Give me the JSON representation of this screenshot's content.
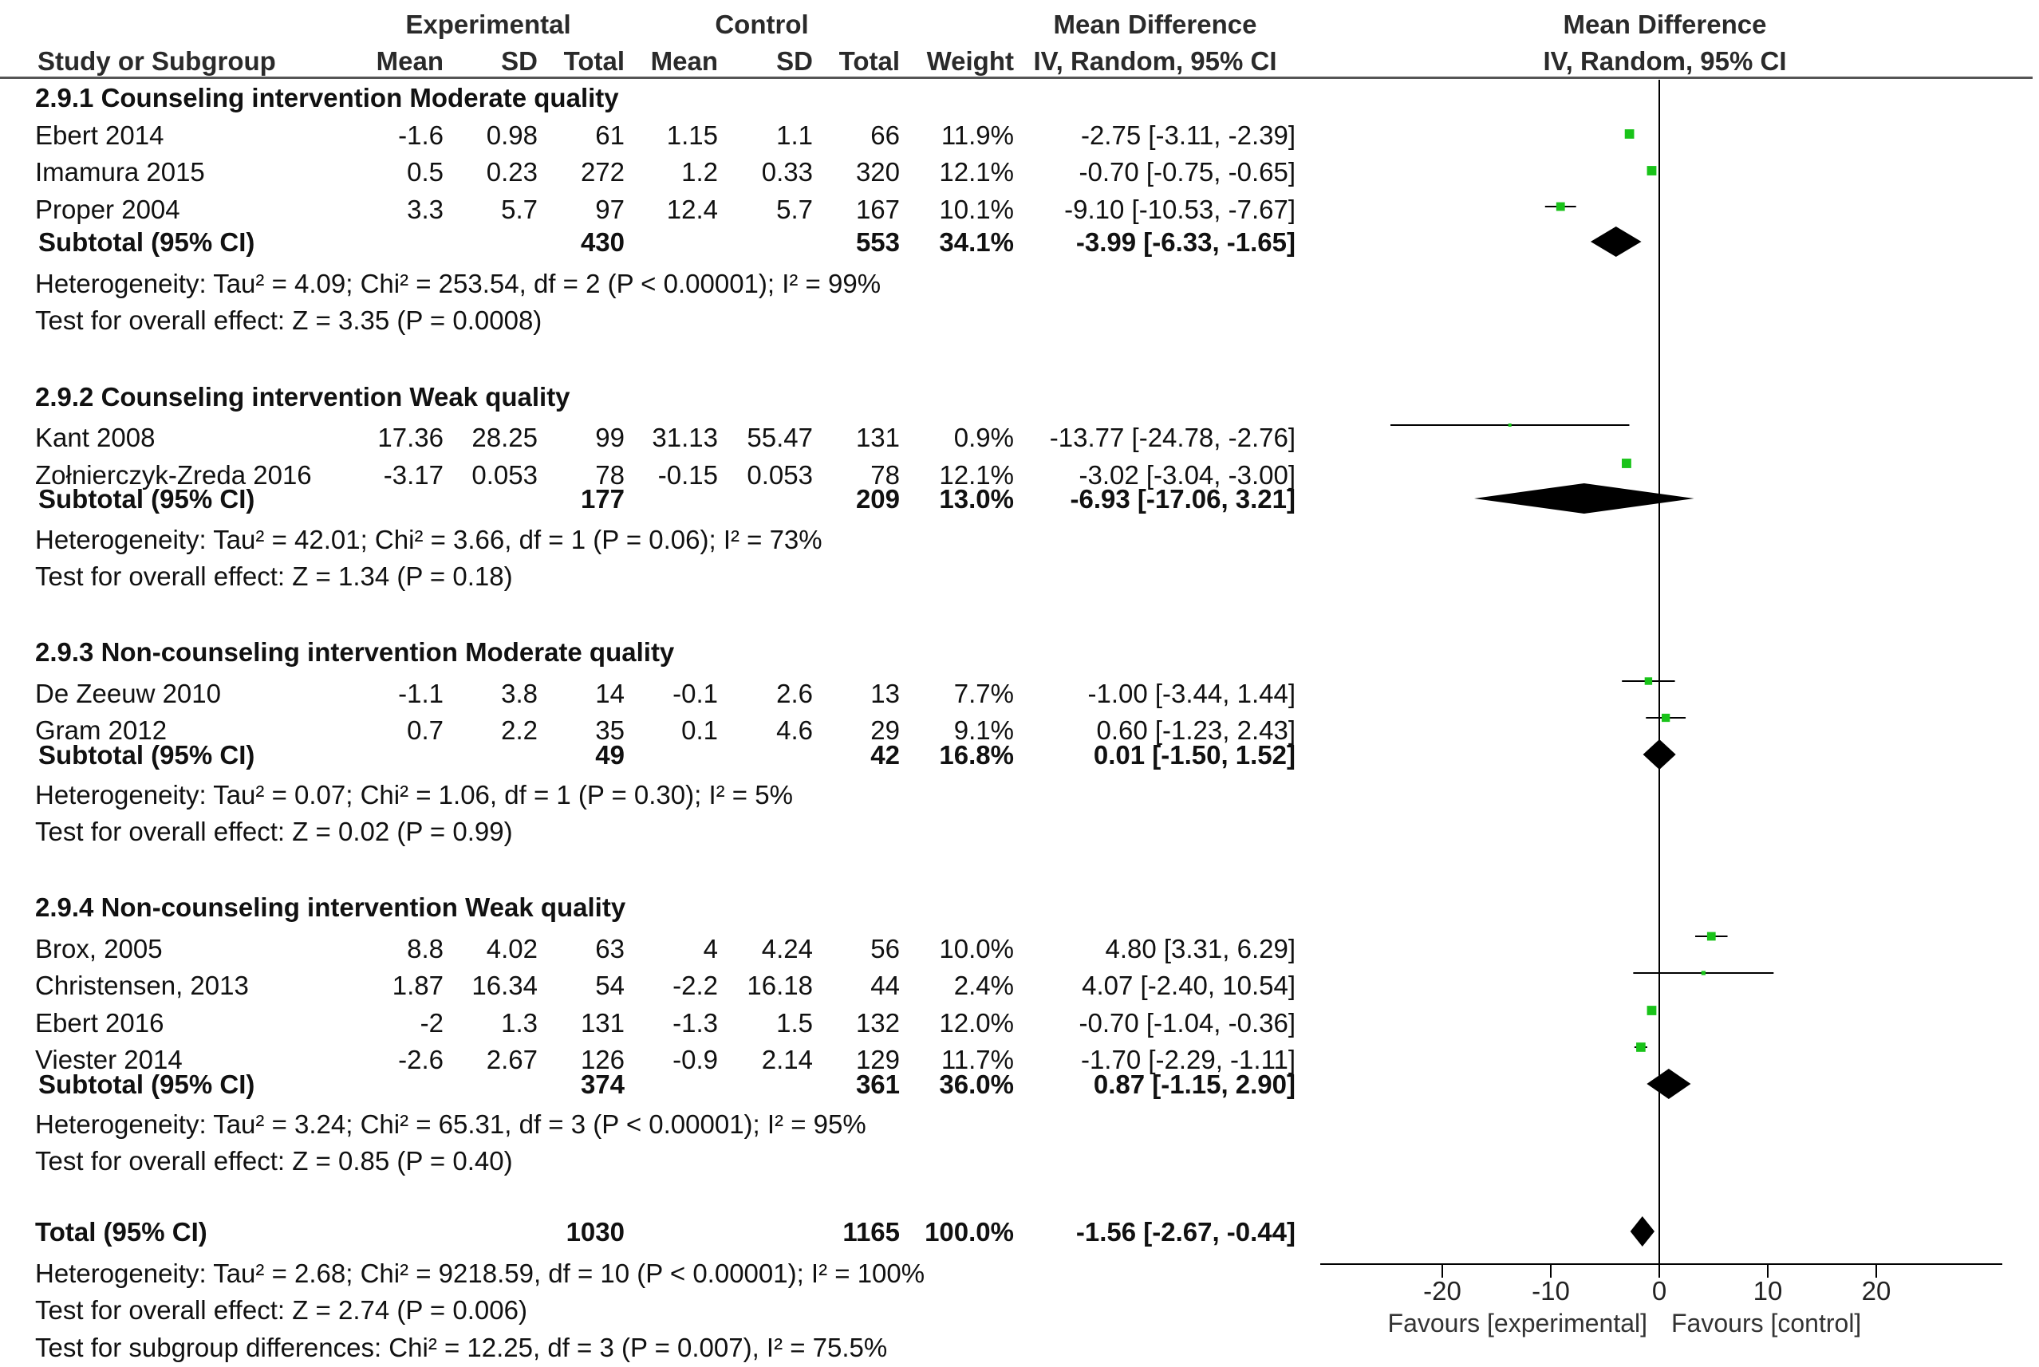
{
  "header": {
    "experimental": "Experimental",
    "control": "Control",
    "md_left": "Mean Difference",
    "md_left_sub": "IV, Random, 95% CI",
    "md_right": "Mean Difference",
    "md_right_sub": "IV, Random, 95% CI",
    "study": "Study or Subgroup",
    "mean": "Mean",
    "sd": "SD",
    "total": "Total",
    "weight": "Weight"
  },
  "rows": [
    {
      "kind": "group",
      "label": "2.9.1 Counseling intervention Moderate quality"
    },
    {
      "kind": "study",
      "name": "Ebert 2014",
      "e_mean": "-1.6",
      "e_sd": "0.98",
      "e_total": "61",
      "c_mean": "1.15",
      "c_sd": "1.1",
      "c_total": "66",
      "weight": "11.9%",
      "ci": "-2.75 [-3.11, -2.39]"
    },
    {
      "kind": "study",
      "name": "Imamura 2015",
      "e_mean": "0.5",
      "e_sd": "0.23",
      "e_total": "272",
      "c_mean": "1.2",
      "c_sd": "0.33",
      "c_total": "320",
      "weight": "12.1%",
      "ci": "-0.70 [-0.75, -0.65]"
    },
    {
      "kind": "study",
      "name": "Proper 2004",
      "e_mean": "3.3",
      "e_sd": "5.7",
      "e_total": "97",
      "c_mean": "12.4",
      "c_sd": "5.7",
      "c_total": "167",
      "weight": "10.1%",
      "ci": "-9.10 [-10.53, -7.67]"
    },
    {
      "kind": "subtotal",
      "name": "Subtotal (95% CI)",
      "e_total": "430",
      "c_total": "553",
      "weight": "34.1%",
      "ci": "-3.99 [-6.33, -1.65]"
    },
    {
      "kind": "note",
      "text": "Heterogeneity: Tau² = 4.09; Chi² = 253.54, df = 2 (P < 0.00001); I² = 99%"
    },
    {
      "kind": "note",
      "text": "Test for overall effect: Z = 3.35 (P = 0.0008)"
    },
    {
      "kind": "group",
      "label": "2.9.2 Counseling intervention Weak quality"
    },
    {
      "kind": "study",
      "name": "Kant 2008",
      "e_mean": "17.36",
      "e_sd": "28.25",
      "e_total": "99",
      "c_mean": "31.13",
      "c_sd": "55.47",
      "c_total": "131",
      "weight": "0.9%",
      "ci": "-13.77 [-24.78, -2.76]"
    },
    {
      "kind": "study",
      "name": "Zołnierczyk-Zreda 2016",
      "e_mean": "-3.17",
      "e_sd": "0.053",
      "e_total": "78",
      "c_mean": "-0.15",
      "c_sd": "0.053",
      "c_total": "78",
      "weight": "12.1%",
      "ci": "-3.02 [-3.04, -3.00]"
    },
    {
      "kind": "subtotal",
      "name": "Subtotal (95% CI)",
      "e_total": "177",
      "c_total": "209",
      "weight": "13.0%",
      "ci": "-6.93 [-17.06, 3.21]"
    },
    {
      "kind": "note",
      "text": "Heterogeneity: Tau² = 42.01; Chi² = 3.66, df = 1 (P = 0.06); I² = 73%"
    },
    {
      "kind": "note",
      "text": "Test for overall effect: Z = 1.34 (P = 0.18)"
    },
    {
      "kind": "group",
      "label": "2.9.3 Non-counseling intervention Moderate quality"
    },
    {
      "kind": "study",
      "name": "De Zeeuw 2010",
      "e_mean": "-1.1",
      "e_sd": "3.8",
      "e_total": "14",
      "c_mean": "-0.1",
      "c_sd": "2.6",
      "c_total": "13",
      "weight": "7.7%",
      "ci": "-1.00 [-3.44, 1.44]"
    },
    {
      "kind": "study",
      "name": "Gram 2012",
      "e_mean": "0.7",
      "e_sd": "2.2",
      "e_total": "35",
      "c_mean": "0.1",
      "c_sd": "4.6",
      "c_total": "29",
      "weight": "9.1%",
      "ci": "0.60 [-1.23, 2.43]"
    },
    {
      "kind": "subtotal",
      "name": "Subtotal (95% CI)",
      "e_total": "49",
      "c_total": "42",
      "weight": "16.8%",
      "ci": "0.01 [-1.50, 1.52]"
    },
    {
      "kind": "note",
      "text": "Heterogeneity: Tau² = 0.07; Chi² = 1.06, df = 1 (P = 0.30); I² = 5%"
    },
    {
      "kind": "note",
      "text": "Test for overall effect: Z = 0.02 (P = 0.99)"
    },
    {
      "kind": "group",
      "label": "2.9.4 Non-counseling intervention Weak quality"
    },
    {
      "kind": "study",
      "name": "Brox, 2005",
      "e_mean": "8.8",
      "e_sd": "4.02",
      "e_total": "63",
      "c_mean": "4",
      "c_sd": "4.24",
      "c_total": "56",
      "weight": "10.0%",
      "ci": "4.80 [3.31, 6.29]"
    },
    {
      "kind": "study",
      "name": "Christensen, 2013",
      "e_mean": "1.87",
      "e_sd": "16.34",
      "e_total": "54",
      "c_mean": "-2.2",
      "c_sd": "16.18",
      "c_total": "44",
      "weight": "2.4%",
      "ci": "4.07 [-2.40, 10.54]"
    },
    {
      "kind": "study",
      "name": "Ebert 2016",
      "e_mean": "-2",
      "e_sd": "1.3",
      "e_total": "131",
      "c_mean": "-1.3",
      "c_sd": "1.5",
      "c_total": "132",
      "weight": "12.0%",
      "ci": "-0.70 [-1.04, -0.36]"
    },
    {
      "kind": "study",
      "name": "Viester 2014",
      "e_mean": "-2.6",
      "e_sd": "2.67",
      "e_total": "126",
      "c_mean": "-0.9",
      "c_sd": "2.14",
      "c_total": "129",
      "weight": "11.7%",
      "ci": "-1.70 [-2.29, -1.11]"
    },
    {
      "kind": "subtotal",
      "name": "Subtotal (95% CI)",
      "e_total": "374",
      "c_total": "361",
      "weight": "36.0%",
      "ci": "0.87 [-1.15, 2.90]"
    },
    {
      "kind": "note",
      "text": "Heterogeneity: Tau² = 3.24; Chi² = 65.31, df = 3 (P < 0.00001); I² = 95%"
    },
    {
      "kind": "note",
      "text": "Test for overall effect: Z = 0.85 (P = 0.40)"
    },
    {
      "kind": "total",
      "name": "Total (95% CI)",
      "e_total": "1030",
      "c_total": "1165",
      "weight": "100.0%",
      "ci": "-1.56 [-2.67, -0.44]"
    },
    {
      "kind": "note",
      "text": "Heterogeneity: Tau² = 2.68; Chi² = 9218.59, df = 10 (P < 0.00001); I² = 100%"
    },
    {
      "kind": "note",
      "text": "Test for overall effect: Z = 2.74 (P = 0.006)"
    },
    {
      "kind": "note",
      "text": "Test for subgroup differences: Chi² = 12.25, df = 3 (P = 0.007), I² = 75.5%"
    }
  ],
  "chart_data": {
    "type": "forest",
    "title": "Mean Difference IV, Random, 95% CI",
    "xlim": [
      -30,
      30
    ],
    "ticks": [
      -20,
      -10,
      0,
      10,
      20
    ],
    "tick_labels": [
      "-20",
      "-10",
      "0",
      "10",
      "20"
    ],
    "xlabel_left": "Favours [experimental]",
    "xlabel_right": "Favours [control]",
    "studies": [
      {
        "name": "Ebert 2014",
        "md": -2.75,
        "lo": -3.11,
        "hi": -2.39,
        "weight": 11.9
      },
      {
        "name": "Imamura 2015",
        "md": -0.7,
        "lo": -0.75,
        "hi": -0.65,
        "weight": 12.1
      },
      {
        "name": "Proper 2004",
        "md": -9.1,
        "lo": -10.53,
        "hi": -7.67,
        "weight": 10.1
      },
      {
        "name": "Kant 2008",
        "md": -13.77,
        "lo": -24.78,
        "hi": -2.76,
        "weight": 0.9
      },
      {
        "name": "Zołnierczyk-Zreda 2016",
        "md": -3.02,
        "lo": -3.04,
        "hi": -3.0,
        "weight": 12.1
      },
      {
        "name": "De Zeeuw 2010",
        "md": -1.0,
        "lo": -3.44,
        "hi": 1.44,
        "weight": 7.7
      },
      {
        "name": "Gram 2012",
        "md": 0.6,
        "lo": -1.23,
        "hi": 2.43,
        "weight": 9.1
      },
      {
        "name": "Brox, 2005",
        "md": 4.8,
        "lo": 3.31,
        "hi": 6.29,
        "weight": 10.0
      },
      {
        "name": "Christensen, 2013",
        "md": 4.07,
        "lo": -2.4,
        "hi": 10.54,
        "weight": 2.4
      },
      {
        "name": "Ebert 2016",
        "md": -0.7,
        "lo": -1.04,
        "hi": -0.36,
        "weight": 12.0
      },
      {
        "name": "Viester 2014",
        "md": -1.7,
        "lo": -2.29,
        "hi": -1.11,
        "weight": 11.7
      }
    ],
    "subtotals": [
      {
        "name": "2.9.1 Subtotal",
        "md": -3.99,
        "lo": -6.33,
        "hi": -1.65
      },
      {
        "name": "2.9.2 Subtotal",
        "md": -6.93,
        "lo": -17.06,
        "hi": 3.21
      },
      {
        "name": "2.9.3 Subtotal",
        "md": 0.01,
        "lo": -1.5,
        "hi": 1.52
      },
      {
        "name": "2.9.4 Subtotal",
        "md": 0.87,
        "lo": -1.15,
        "hi": 2.9
      }
    ],
    "overall": {
      "name": "Total",
      "md": -1.56,
      "lo": -2.67,
      "hi": -0.44
    },
    "colors": {
      "square": "#19c319",
      "line": "#000000",
      "diamond": "#000000"
    }
  }
}
